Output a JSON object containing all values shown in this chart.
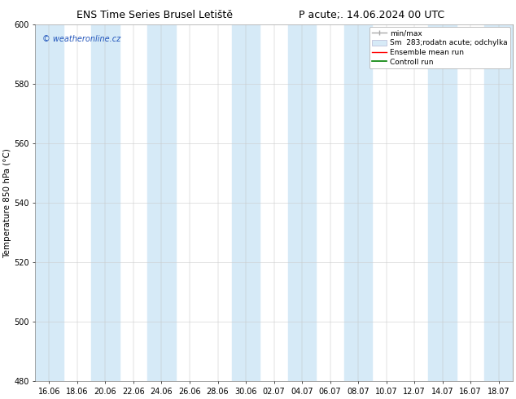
{
  "title_left": "ENS Time Series Brusel Letiště",
  "title_right": "P acute;. 14.06.2024 00 UTC",
  "ylabel": "Temperature 850 hPa (°C)",
  "watermark": "© weatheronline.cz",
  "ylim": [
    480,
    600
  ],
  "yticks": [
    480,
    500,
    520,
    540,
    560,
    580,
    600
  ],
  "x_labels": [
    "16.06",
    "18.06",
    "20.06",
    "22.06",
    "24.06",
    "26.06",
    "28.06",
    "30.06",
    "02.07",
    "04.07",
    "06.07",
    "08.07",
    "10.07",
    "12.07",
    "14.07",
    "16.07",
    "18.07"
  ],
  "shade_positions": [
    0,
    2,
    4,
    7,
    9,
    11,
    14,
    16
  ],
  "shade_color": "#d6eaf7",
  "background_color": "#ffffff",
  "plot_bg_color": "#ffffff",
  "grid_color": "#cccccc",
  "title_fontsize": 9,
  "tick_fontsize": 7,
  "label_fontsize": 7.5,
  "watermark_color": "#2255bb",
  "watermark_fontsize": 7,
  "legend_fontsize": 6.5
}
